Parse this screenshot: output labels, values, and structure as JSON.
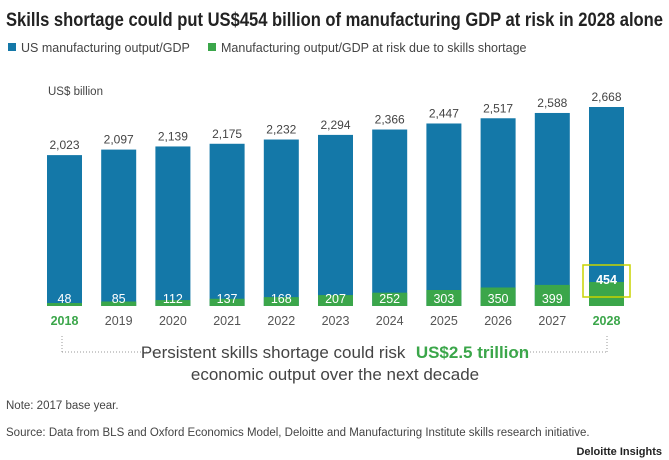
{
  "chart_data": {
    "type": "bar",
    "title": "Skills shortage could put US$454 billion of manufacturing GDP at risk in 2028 alone",
    "ylabel": "US$ billion",
    "categories": [
      "2018",
      "2019",
      "2020",
      "2021",
      "2022",
      "2023",
      "2024",
      "2025",
      "2026",
      "2027",
      "2028"
    ],
    "highlighted_categories": [
      "2018",
      "2028"
    ],
    "series": [
      {
        "name": "US manufacturing output/GDP",
        "color": "#1478a8",
        "values": [
          2023,
          2097,
          2139,
          2175,
          2232,
          2294,
          2366,
          2447,
          2517,
          2588,
          2668
        ],
        "labels": [
          "2,023",
          "2,097",
          "2,139",
          "2,175",
          "2,232",
          "2,294",
          "2,366",
          "2,447",
          "2,517",
          "2,588",
          "2,668"
        ]
      },
      {
        "name": "Manufacturing output/GDP at risk due to skills shortage",
        "color": "#3ba64a",
        "values": [
          48,
          85,
          112,
          137,
          168,
          207,
          252,
          303,
          350,
          399,
          454
        ],
        "labels": [
          "48",
          "85",
          "112",
          "137",
          "168",
          "207",
          "252",
          "303",
          "350",
          "399",
          "454"
        ]
      }
    ],
    "ylim": [
      0,
      2700
    ],
    "grid": false,
    "legend": "top-left",
    "highlight_box_color": "#c8d400"
  },
  "callout": {
    "text_before": "Persistent skills shortage could risk",
    "highlight": "US$2.5 trillion",
    "line2": "economic output over the next decade"
  },
  "note": "Note: 2017 base year.",
  "source": "Source: Data from BLS and Oxford Economics Model, Deloitte and Manufacturing Institute skills research initiative.",
  "brand": "Deloitte Insights"
}
